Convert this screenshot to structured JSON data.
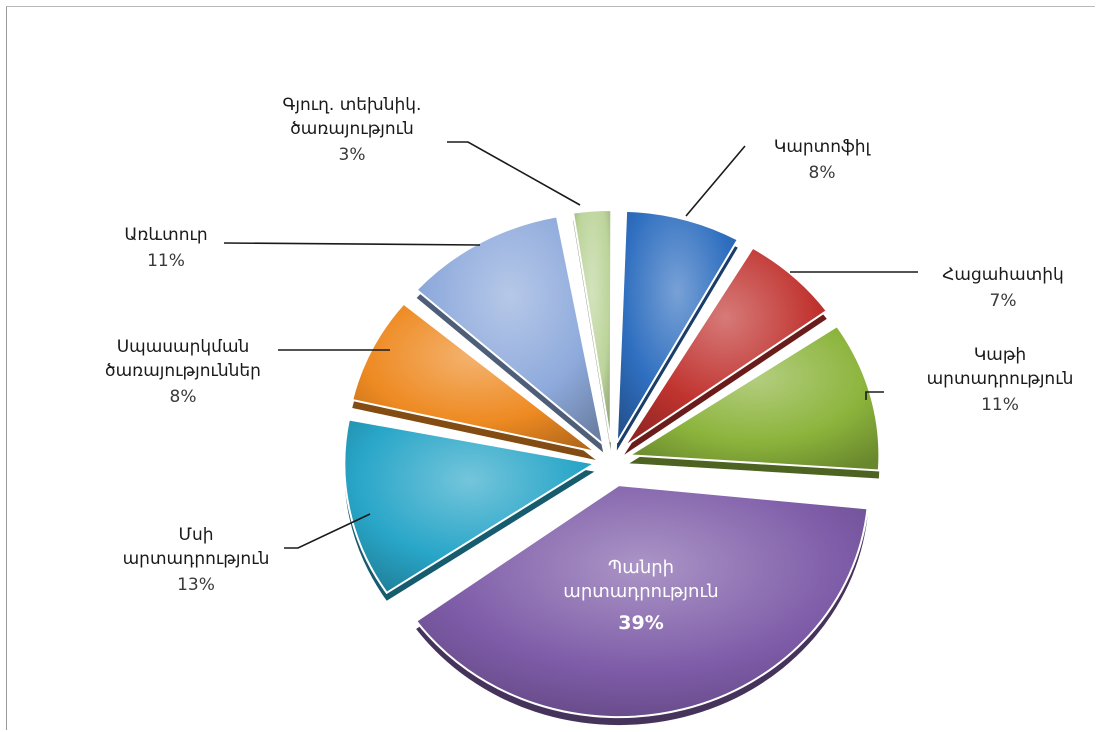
{
  "chart_data": {
    "type": "pie",
    "exploded": true,
    "slices": [
      {
        "label": "Կարտոֆիլ",
        "lines": [
          "Կարտոֆիլ"
        ],
        "value": 8,
        "pct_label": "8%",
        "color": "#2f6fc0"
      },
      {
        "label": "Հացահատիկ",
        "lines": [
          "Հացահատիկ"
        ],
        "value": 7,
        "pct_label": "7%",
        "color": "#c0332f"
      },
      {
        "label": "Կաթի արտադրություն",
        "lines": [
          "Կաթի",
          "արտադրություն"
        ],
        "value": 11,
        "pct_label": "11%",
        "color": "#8cb43c"
      },
      {
        "label": "Պանրի արտադրություն",
        "lines": [
          "Պանրի",
          "արտադրություն"
        ],
        "value": 39,
        "pct_label": "39%",
        "color": "#7e5ca8"
      },
      {
        "label": "Մսի արտադրություն",
        "lines": [
          "Մսի",
          "արտադրություն"
        ],
        "value": 13,
        "pct_label": "13%",
        "color": "#29a6c8"
      },
      {
        "label": "Սպասարկման ծառայություններ",
        "lines": [
          "Սպասարկման",
          "ծառայություններ"
        ],
        "value": 8,
        "pct_label": "8%",
        "color": "#ee8a22"
      },
      {
        "label": "Առևտուր",
        "lines": [
          "Առևտուր"
        ],
        "value": 11,
        "pct_label": "11%",
        "color": "#8eaadc"
      },
      {
        "label": "Գյուղ. տեխնիկ. ծառայություն",
        "lines": [
          "Գյուղ. տեխնիկ.",
          "ծառայություն"
        ],
        "value": 3,
        "pct_label": "3%",
        "color": "#bcd49a"
      }
    ]
  }
}
